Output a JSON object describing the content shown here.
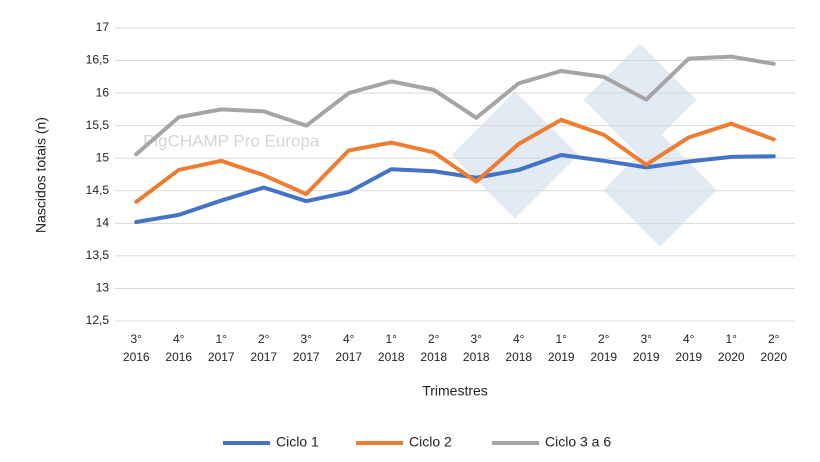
{
  "chart_data": {
    "type": "line",
    "y_label": "Nascidos totais (n)",
    "x_label": "Trimestres",
    "watermark": "PigCHAMP Pro Europa",
    "categories": [
      [
        "3°",
        "2016"
      ],
      [
        "4°",
        "2016"
      ],
      [
        "1°",
        "2017"
      ],
      [
        "2°",
        "2017"
      ],
      [
        "3°",
        "2017"
      ],
      [
        "4°",
        "2017"
      ],
      [
        "1°",
        "2018"
      ],
      [
        "2°",
        "2018"
      ],
      [
        "3°",
        "2018"
      ],
      [
        "4°",
        "2018"
      ],
      [
        "1°",
        "2019"
      ],
      [
        "2°",
        "2019"
      ],
      [
        "3°",
        "2019"
      ],
      [
        "4°",
        "2019"
      ],
      [
        "1°",
        "2020"
      ],
      [
        "2°",
        "2020"
      ]
    ],
    "series": [
      {
        "name": "Ciclo 1",
        "color": "#4472c4",
        "values": [
          14.02,
          14.13,
          14.35,
          14.55,
          14.34,
          14.48,
          14.83,
          14.8,
          14.7,
          14.82,
          15.05,
          14.96,
          14.86,
          14.95,
          15.02,
          15.03
        ]
      },
      {
        "name": "Ciclo 2",
        "color": "#ed7d31",
        "values": [
          14.33,
          14.82,
          14.96,
          14.74,
          14.45,
          15.12,
          15.24,
          15.09,
          14.64,
          15.22,
          15.59,
          15.36,
          14.9,
          15.32,
          15.53,
          15.29
        ]
      },
      {
        "name": "Ciclo 3 a 6",
        "color": "#a5a5a5",
        "values": [
          15.06,
          15.63,
          15.75,
          15.72,
          15.5,
          16.0,
          16.18,
          16.05,
          15.62,
          16.15,
          16.34,
          16.25,
          15.9,
          16.53,
          16.56,
          16.45
        ]
      }
    ],
    "ylim": [
      12.5,
      17
    ],
    "yticks": [
      {
        "value": 12.5,
        "label": "12,5"
      },
      13,
      {
        "value": 13.5,
        "label": "13,5"
      },
      14,
      {
        "value": 14.5,
        "label": "14,5"
      },
      15,
      {
        "value": 15.5,
        "label": "15,5"
      },
      16,
      {
        "value": 16.5,
        "label": "16,5"
      },
      17
    ],
    "grid": true,
    "legend": "bottom"
  }
}
